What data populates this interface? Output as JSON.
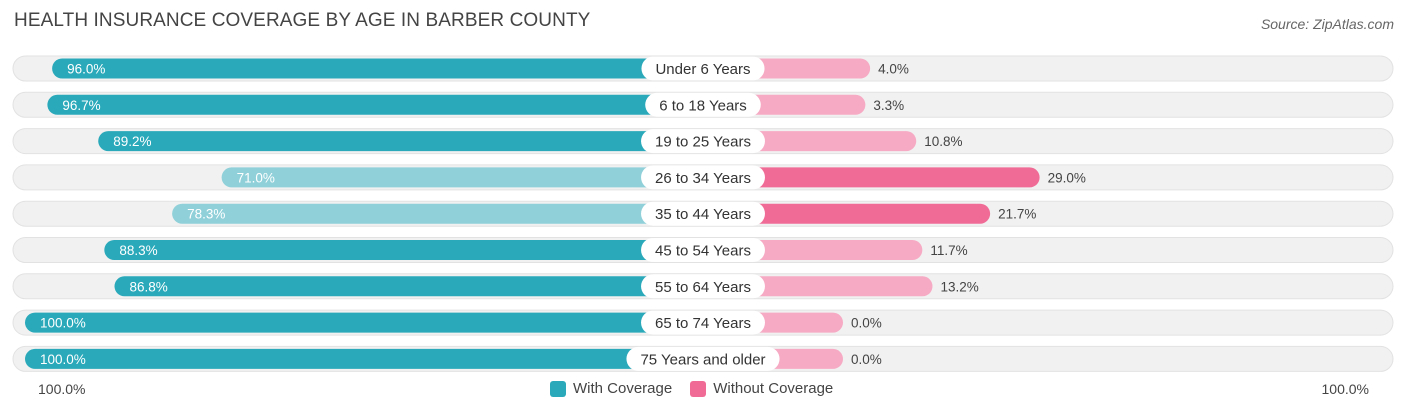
{
  "title": "HEALTH INSURANCE COVERAGE BY AGE IN BARBER COUNTY",
  "source": "Source: ZipAtlas.com",
  "colors": {
    "with_dark": "#2aa9ba",
    "with_light": "#8fd0d9",
    "without_dark": "#f06c97",
    "without_light": "#f6aac3",
    "track": "#f0f0f0"
  },
  "legend": {
    "with": "With Coverage",
    "without": "Without Coverage"
  },
  "axis": {
    "left": "100.0%",
    "right": "100.0%"
  },
  "chart_data": {
    "type": "bar",
    "orientation": "horizontal-diverging",
    "title": "HEALTH INSURANCE COVERAGE BY AGE IN BARBER COUNTY",
    "categories": [
      "Under 6 Years",
      "6 to 18 Years",
      "19 to 25 Years",
      "26 to 34 Years",
      "35 to 44 Years",
      "45 to 54 Years",
      "55 to 64 Years",
      "65 to 74 Years",
      "75 Years and older"
    ],
    "series": [
      {
        "name": "With Coverage",
        "values": [
          96.0,
          96.7,
          89.2,
          71.0,
          78.3,
          88.3,
          86.8,
          100.0,
          100.0
        ],
        "labels": [
          "96.0%",
          "96.7%",
          "89.2%",
          "71.0%",
          "78.3%",
          "88.3%",
          "86.8%",
          "100.0%",
          "100.0%"
        ]
      },
      {
        "name": "Without Coverage",
        "values": [
          4.0,
          3.3,
          10.8,
          29.0,
          21.7,
          11.7,
          13.2,
          0.0,
          0.0
        ],
        "labels": [
          "4.0%",
          "3.3%",
          "10.8%",
          "29.0%",
          "21.7%",
          "11.7%",
          "13.2%",
          "0.0%",
          "0.0%"
        ]
      }
    ],
    "xlim": [
      0,
      100
    ]
  }
}
